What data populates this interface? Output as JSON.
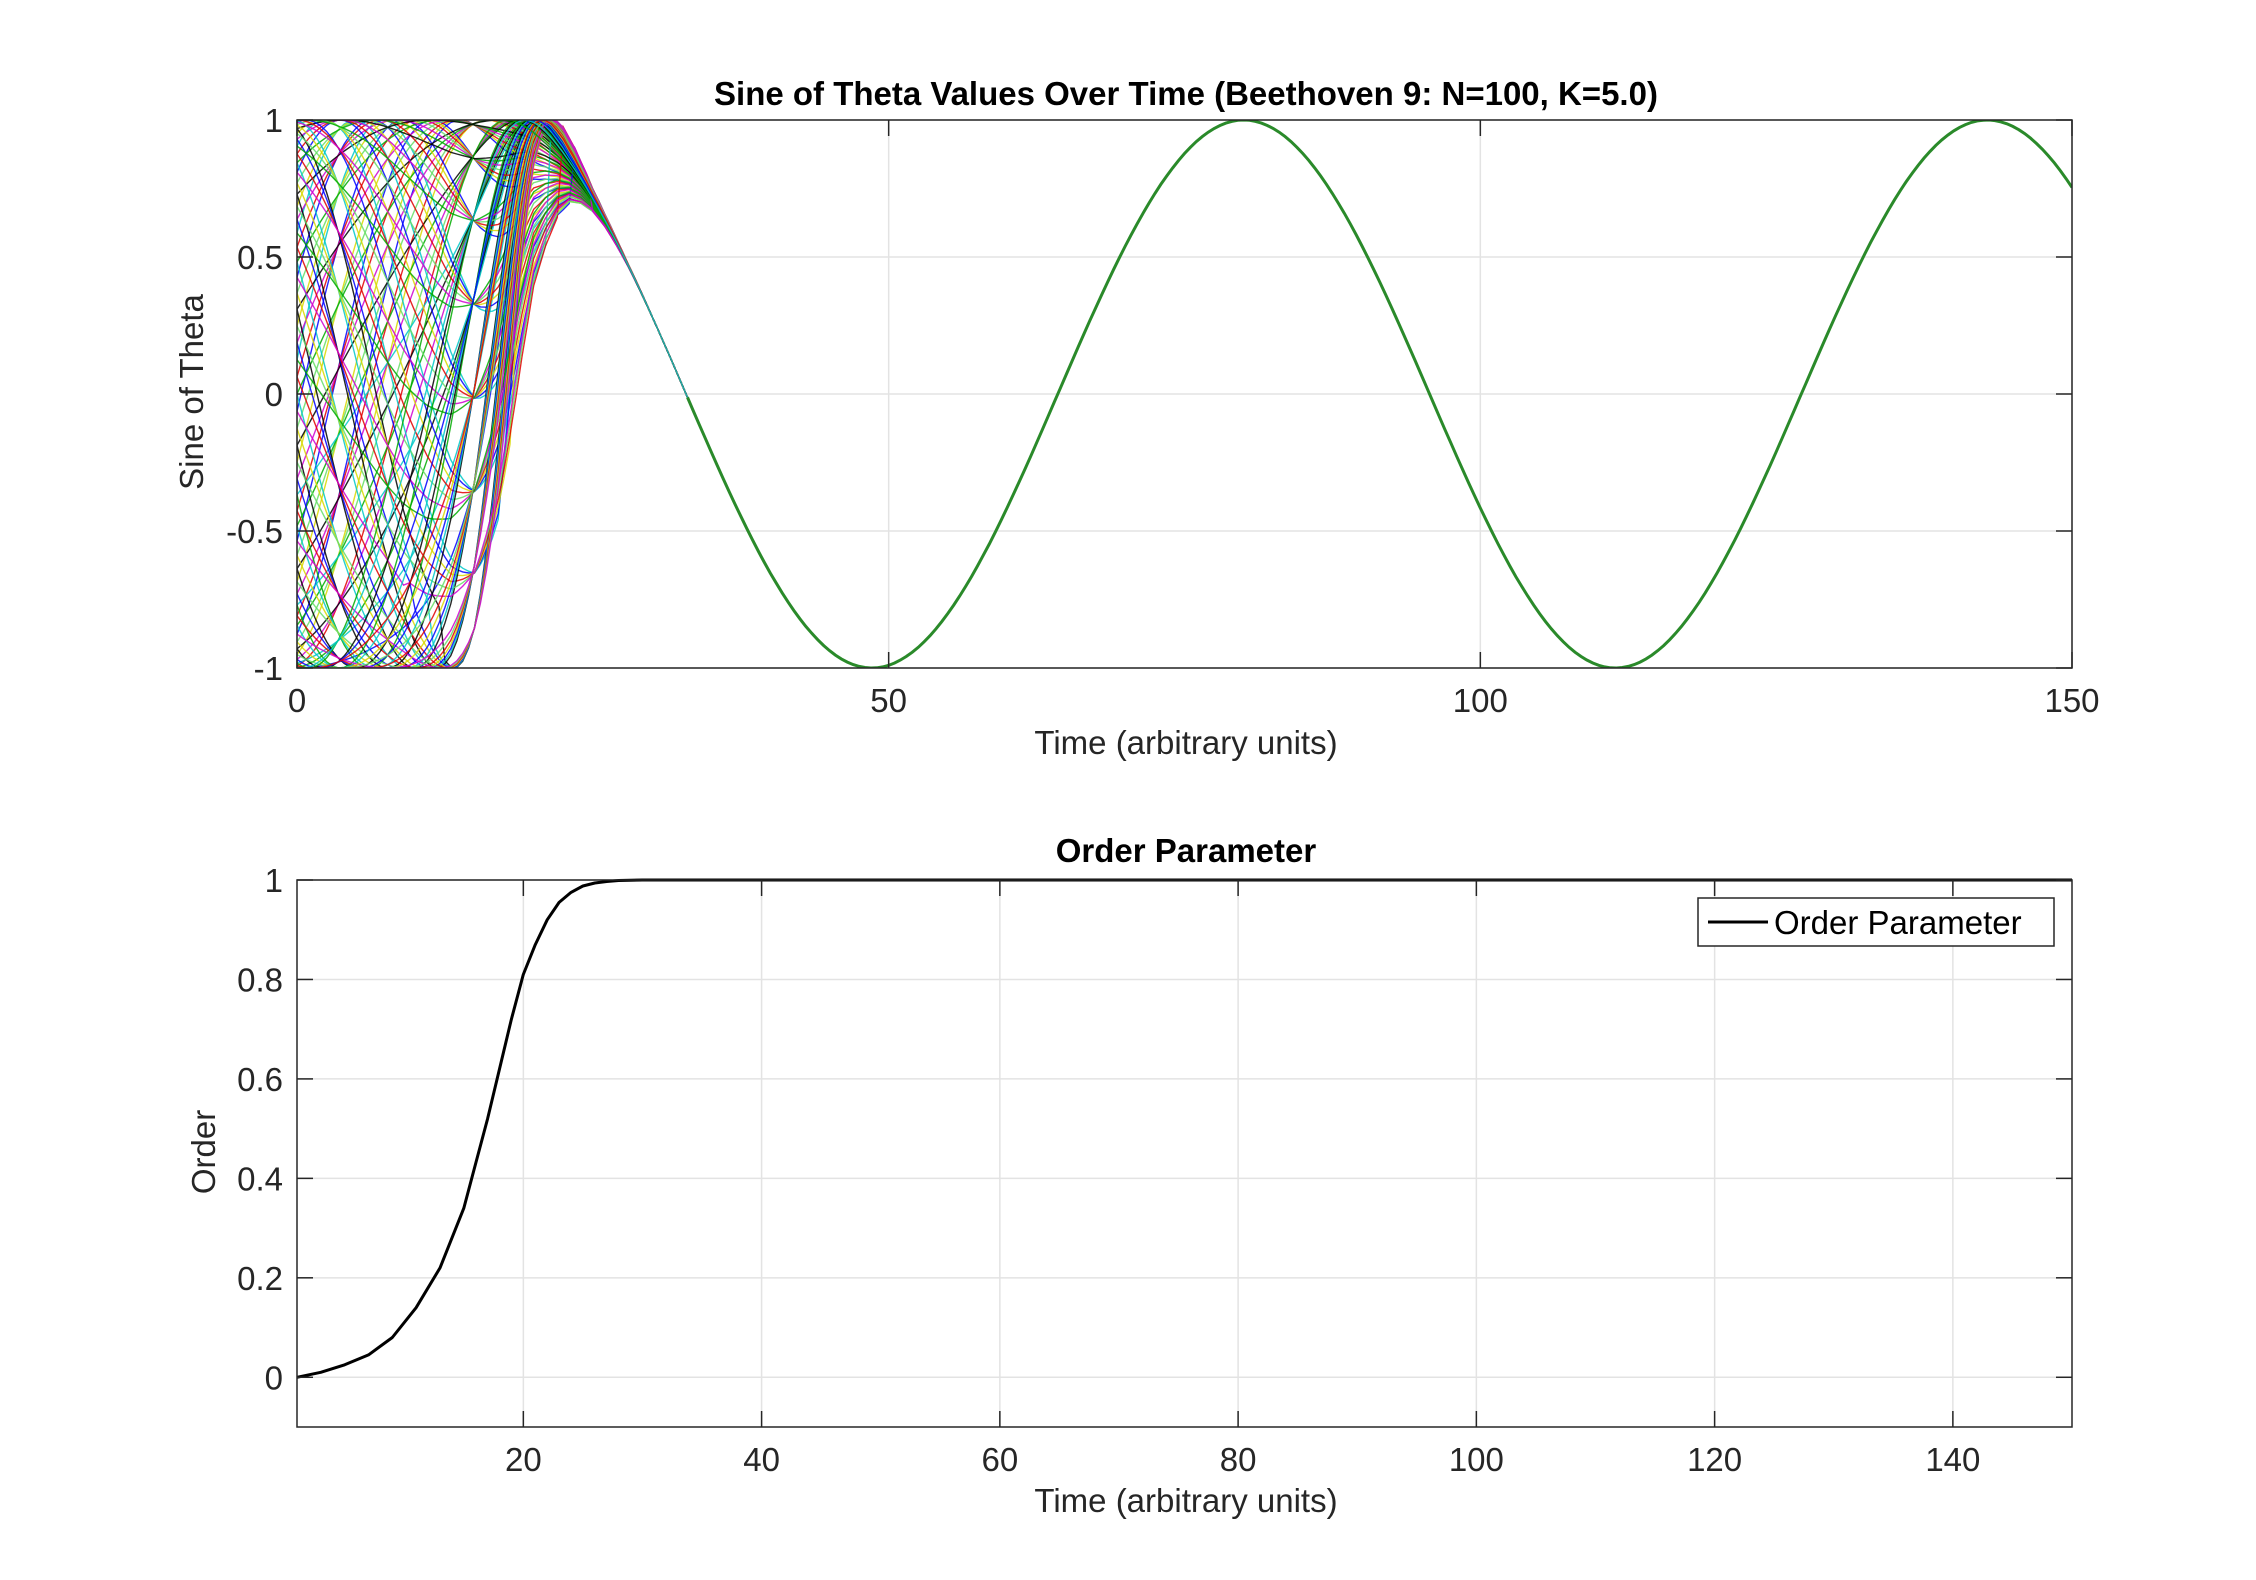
{
  "chart_data": [
    {
      "type": "line",
      "title": "Sine of Theta Values Over Time (Beethoven 9: N=100, K=5.0)",
      "xlabel": "Time (arbitrary units)",
      "ylabel": "Sine of Theta",
      "xlim": [
        0,
        150
      ],
      "ylim": [
        -1,
        1
      ],
      "xticks": [
        0,
        50,
        100,
        150
      ],
      "yticks": [
        -1,
        -0.5,
        0,
        0.5,
        1
      ],
      "grid": true,
      "legend": "none",
      "oscillator_count": 100,
      "oscillator_colors": [
        "#0000ff",
        "#00aa00",
        "#e00000",
        "#00c8c8",
        "#d000d0",
        "#d8d800",
        "#000000",
        "#66dd66"
      ],
      "sync_frequency": 0.1,
      "sync_phase_peak_time": 80,
      "unsynced_until": 33,
      "order_param_for_sync": "plot-2"
    },
    {
      "type": "line",
      "title": "Order Parameter",
      "xlabel": "Time (arbitrary units)",
      "ylabel": "Order",
      "xlim": [
        1,
        150
      ],
      "ylim": [
        -0.1,
        1
      ],
      "xticks": [
        20,
        40,
        60,
        80,
        100,
        120,
        140
      ],
      "yticks": [
        0,
        0.2,
        0.4,
        0.6,
        0.8,
        1
      ],
      "grid": true,
      "legend": "top-right",
      "series": [
        {
          "name": "Order Parameter",
          "color": "#000000",
          "x": [
            1,
            3,
            5,
            7,
            9,
            11,
            13,
            15,
            16,
            17,
            18,
            19,
            20,
            21,
            22,
            23,
            24,
            25,
            26,
            27,
            28,
            30,
            35,
            40,
            60,
            80,
            100,
            120,
            150
          ],
          "y": [
            0.0,
            0.01,
            0.025,
            0.045,
            0.08,
            0.14,
            0.22,
            0.34,
            0.43,
            0.52,
            0.62,
            0.72,
            0.81,
            0.87,
            0.92,
            0.955,
            0.975,
            0.988,
            0.994,
            0.997,
            0.999,
            1.0,
            1.0,
            1.0,
            1.0,
            1.0,
            1.0,
            1.0,
            1.0
          ]
        }
      ]
    }
  ]
}
